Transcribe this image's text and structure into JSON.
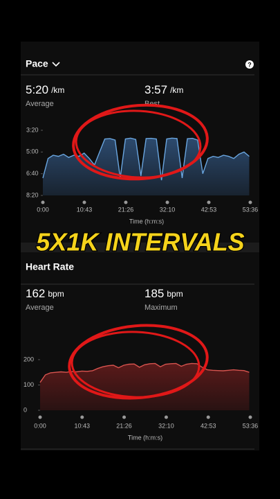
{
  "overlay_text": "5X1K INTERVALS",
  "chart_data": [
    {
      "type": "area",
      "title": "Pace",
      "stats": [
        {
          "value": "5:20",
          "unit": "/km",
          "label": "Average"
        },
        {
          "value": "3:57",
          "unit": "/km",
          "label": "Best"
        }
      ],
      "x_label": "Time (h:m:s)",
      "x": [
        0,
        80,
        160,
        240,
        320,
        400,
        480,
        560,
        640,
        720,
        800,
        880,
        960,
        1040,
        1120,
        1200,
        1280,
        1360,
        1440,
        1520,
        1600,
        1680,
        1760,
        1840,
        1920,
        2000,
        2080,
        2160,
        2240,
        2320,
        2400,
        2480,
        2560,
        2640,
        2720,
        2800,
        2880,
        2960,
        3040,
        3120,
        3200
      ],
      "values": [
        420,
        330,
        315,
        320,
        310,
        325,
        315,
        320,
        305,
        330,
        360,
        300,
        240,
        238,
        245,
        420,
        240,
        236,
        242,
        410,
        238,
        237,
        240,
        430,
        240,
        236,
        238,
        420,
        239,
        237,
        245,
        400,
        330,
        320,
        325,
        315,
        320,
        330,
        310,
        300,
        320
      ],
      "color": "#6aa6e0",
      "fill": "#2c4a6e",
      "xlim": [
        0,
        3216
      ],
      "xticks": [
        {
          "value": 0,
          "label": "0:00"
        },
        {
          "value": 643,
          "label": "10:43"
        },
        {
          "value": 1286,
          "label": "21:26"
        },
        {
          "value": 1930,
          "label": "32:10"
        },
        {
          "value": 2573,
          "label": "42:53"
        },
        {
          "value": 3216,
          "label": "53:36"
        }
      ],
      "ylim": [
        500,
        200
      ],
      "yticks": [
        {
          "value": 200,
          "label": "3:20"
        },
        {
          "value": 300,
          "label": "5:00"
        },
        {
          "value": 400,
          "label": "6:40"
        },
        {
          "value": 500,
          "label": "8:20"
        }
      ],
      "grid": false
    },
    {
      "type": "area",
      "title": "Heart Rate",
      "stats": [
        {
          "value": 162,
          "unit": "bpm",
          "label": "Average"
        },
        {
          "value": 185,
          "unit": "bpm",
          "label": "Maximum"
        }
      ],
      "x_label": "Time (h:m:s)",
      "x": [
        0,
        80,
        160,
        240,
        320,
        400,
        480,
        560,
        640,
        720,
        800,
        880,
        960,
        1040,
        1120,
        1200,
        1280,
        1360,
        1440,
        1520,
        1600,
        1680,
        1760,
        1840,
        1920,
        2000,
        2080,
        2160,
        2240,
        2320,
        2400,
        2480,
        2560,
        2640,
        2720,
        2800,
        2880,
        2960,
        3040,
        3120,
        3200
      ],
      "values": [
        110,
        140,
        148,
        150,
        152,
        150,
        153,
        152,
        155,
        154,
        156,
        165,
        172,
        176,
        178,
        168,
        178,
        182,
        183,
        170,
        180,
        184,
        185,
        172,
        182,
        184,
        185,
        174,
        182,
        185,
        184,
        170,
        160,
        158,
        157,
        156,
        158,
        160,
        158,
        157,
        150
      ],
      "color": "#d9544f",
      "fill": "#5a1a1a",
      "xlim": [
        0,
        3216
      ],
      "xticks": [
        {
          "value": 0,
          "label": "0:00"
        },
        {
          "value": 643,
          "label": "10:43"
        },
        {
          "value": 1286,
          "label": "21:26"
        },
        {
          "value": 1930,
          "label": "32:10"
        },
        {
          "value": 2573,
          "label": "42:53"
        },
        {
          "value": 3216,
          "label": "53:36"
        }
      ],
      "ylim": [
        0,
        230
      ],
      "yticks": [
        0,
        100,
        200
      ],
      "grid": false
    }
  ]
}
